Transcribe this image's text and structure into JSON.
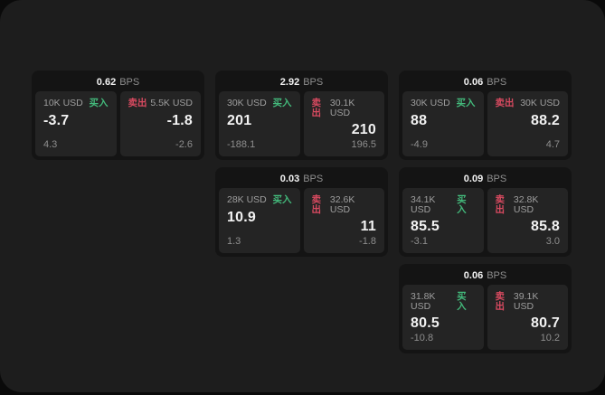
{
  "labels": {
    "buy": "买入",
    "sell": "卖出",
    "bps_unit": "BPS"
  },
  "colors": {
    "outer_background": "#0a0a0a",
    "window_background": "#1d1d1d",
    "card_bg": "#141414",
    "panel_bg": "#242424",
    "value_white": "#f2f2f2",
    "muted_gray": "#8e8e8e",
    "buy_green": "#43b97b",
    "sell_red": "#d84a60"
  },
  "cards": [
    {
      "bps": "0.62",
      "row": 1,
      "col": 1,
      "buy": {
        "amount": "10K USD",
        "value": "-3.7",
        "sub": "4.3"
      },
      "sell": {
        "amount": "5.5K USD",
        "value": "-1.8",
        "sub": "-2.6"
      }
    },
    {
      "bps": "2.92",
      "row": 1,
      "col": 2,
      "buy": {
        "amount": "30K USD",
        "value": "201",
        "sub": "-188.1"
      },
      "sell": {
        "amount": "30.1K USD",
        "value": "210",
        "sub": "196.5"
      }
    },
    {
      "bps": "0.06",
      "row": 1,
      "col": 3,
      "buy": {
        "amount": "30K USD",
        "value": "88",
        "sub": "-4.9"
      },
      "sell": {
        "amount": "30K USD",
        "value": "88.2",
        "sub": "4.7"
      }
    },
    {
      "bps": "0.03",
      "row": 2,
      "col": 2,
      "buy": {
        "amount": "28K USD",
        "value": "10.9",
        "sub": "1.3"
      },
      "sell": {
        "amount": "32.6K USD",
        "value": "11",
        "sub": "-1.8"
      }
    },
    {
      "bps": "0.09",
      "row": 2,
      "col": 3,
      "buy": {
        "amount": "34.1K USD",
        "value": "85.5",
        "sub": "-3.1"
      },
      "sell": {
        "amount": "32.8K USD",
        "value": "85.8",
        "sub": "3.0"
      }
    },
    {
      "bps": "0.06",
      "row": 3,
      "col": 3,
      "buy": {
        "amount": "31.8K USD",
        "value": "80.5",
        "sub": "-10.8"
      },
      "sell": {
        "amount": "39.1K USD",
        "value": "80.7",
        "sub": "10.2"
      }
    }
  ]
}
